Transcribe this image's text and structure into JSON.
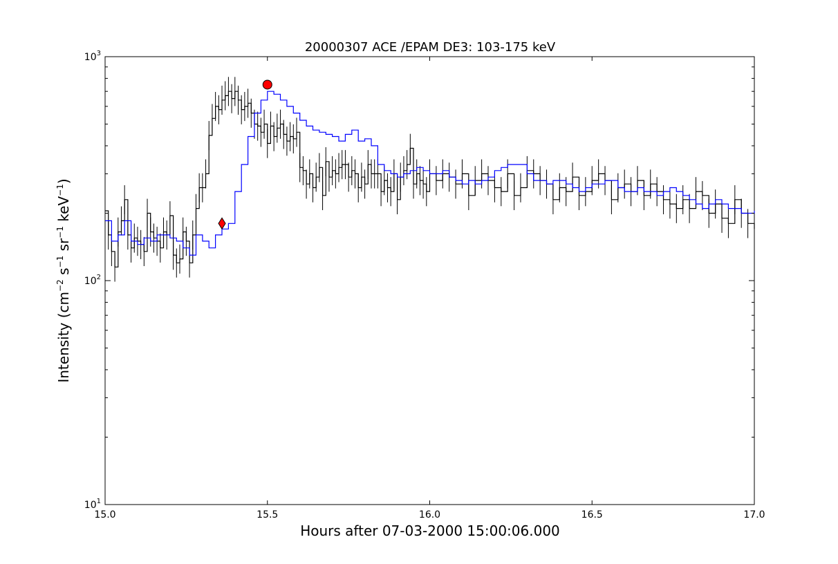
{
  "chart_data": {
    "type": "line",
    "title": "20000307 ACE /EPAM DE3: 103-175 keV",
    "xlabel": "Hours after 07-03-2000 15:00:06.000",
    "ylabel": {
      "base": "Intensity (cm",
      "sup1": "−2",
      "s": " s",
      "sup2": "−1",
      "sr": " sr",
      "sup3": "−1",
      "kev": " keV",
      "sup4": "−1",
      "close": ")"
    },
    "xlim": [
      15.0,
      17.0
    ],
    "ylim": [
      10,
      1000
    ],
    "y_scale": "log",
    "x_ticks": [
      {
        "value": 15.0,
        "label": "15.0"
      },
      {
        "value": 15.5,
        "label": "15.5"
      },
      {
        "value": 16.0,
        "label": "16.0"
      },
      {
        "value": 16.5,
        "label": "16.5"
      },
      {
        "value": 17.0,
        "label": "17.0"
      }
    ],
    "y_ticks": [
      {
        "value": 10,
        "base": "10",
        "exp": "1"
      },
      {
        "value": 100,
        "base": "10",
        "exp": "2"
      },
      {
        "value": 1000,
        "base": "10",
        "exp": "3"
      }
    ],
    "grid": false,
    "series": [
      {
        "color": "#000000",
        "style": "step-with-errorbars",
        "x": [
          15.0,
          15.01,
          15.02,
          15.03,
          15.04,
          15.05,
          15.06,
          15.07,
          15.08,
          15.09,
          15.1,
          15.11,
          15.12,
          15.13,
          15.14,
          15.15,
          15.16,
          15.17,
          15.18,
          15.19,
          15.2,
          15.21,
          15.22,
          15.23,
          15.24,
          15.25,
          15.26,
          15.27,
          15.28,
          15.29,
          15.3,
          15.31,
          15.32,
          15.33,
          15.34,
          15.35,
          15.36,
          15.37,
          15.38,
          15.39,
          15.4,
          15.41,
          15.42,
          15.43,
          15.44,
          15.45,
          15.46,
          15.47,
          15.48,
          15.49,
          15.5,
          15.51,
          15.52,
          15.53,
          15.54,
          15.55,
          15.56,
          15.57,
          15.58,
          15.59,
          15.6,
          15.61,
          15.62,
          15.63,
          15.64,
          15.65,
          15.66,
          15.67,
          15.68,
          15.69,
          15.7,
          15.71,
          15.72,
          15.73,
          15.74,
          15.75,
          15.76,
          15.77,
          15.78,
          15.79,
          15.8,
          15.81,
          15.82,
          15.83,
          15.84,
          15.85,
          15.86,
          15.87,
          15.88,
          15.89,
          15.9,
          15.91,
          15.92,
          15.93,
          15.94,
          15.95,
          15.96,
          15.97,
          15.98,
          15.99,
          16.0,
          16.02,
          16.04,
          16.06,
          16.08,
          16.1,
          16.12,
          16.14,
          16.16,
          16.18,
          16.2,
          16.22,
          16.24,
          16.26,
          16.28,
          16.3,
          16.32,
          16.34,
          16.36,
          16.38,
          16.4,
          16.42,
          16.44,
          16.46,
          16.48,
          16.5,
          16.52,
          16.54,
          16.56,
          16.58,
          16.6,
          16.62,
          16.64,
          16.66,
          16.68,
          16.7,
          16.72,
          16.74,
          16.76,
          16.78,
          16.8,
          16.82,
          16.84,
          16.86,
          16.88,
          16.9,
          16.92,
          16.94,
          16.96,
          16.98,
          17.0
        ],
        "y": [
          205,
          160,
          135,
          115,
          165,
          185,
          230,
          160,
          140,
          155,
          150,
          145,
          135,
          200,
          165,
          155,
          150,
          140,
          165,
          160,
          195,
          130,
          120,
          125,
          165,
          150,
          120,
          160,
          210,
          260,
          260,
          300,
          445,
          530,
          600,
          580,
          640,
          670,
          700,
          650,
          700,
          640,
          580,
          600,
          620,
          560,
          500,
          490,
          460,
          500,
          410,
          490,
          440,
          480,
          500,
          450,
          420,
          440,
          430,
          460,
          320,
          310,
          270,
          300,
          260,
          290,
          320,
          240,
          340,
          290,
          310,
          300,
          320,
          330,
          330,
          290,
          310,
          300,
          260,
          290,
          270,
          330,
          300,
          300,
          300,
          250,
          280,
          260,
          250,
          300,
          230,
          290,
          310,
          330,
          390,
          270,
          300,
          280,
          270,
          250,
          300,
          280,
          300,
          290,
          270,
          300,
          240,
          280,
          300,
          280,
          260,
          250,
          300,
          240,
          260,
          310,
          300,
          280,
          270,
          230,
          260,
          250,
          290,
          240,
          250,
          280,
          300,
          280,
          230,
          260,
          270,
          250,
          280,
          240,
          270,
          250,
          230,
          220,
          210,
          230,
          210,
          250,
          240,
          200,
          220,
          190,
          180,
          230,
          200,
          180,
          170
        ]
      },
      {
        "color": "#0000ff",
        "style": "step",
        "x": [
          15.0,
          15.02,
          15.04,
          15.06,
          15.08,
          15.1,
          15.12,
          15.14,
          15.16,
          15.18,
          15.2,
          15.22,
          15.24,
          15.26,
          15.28,
          15.3,
          15.32,
          15.34,
          15.36,
          15.38,
          15.4,
          15.42,
          15.44,
          15.46,
          15.48,
          15.5,
          15.52,
          15.54,
          15.56,
          15.58,
          15.6,
          15.62,
          15.64,
          15.66,
          15.68,
          15.7,
          15.72,
          15.74,
          15.76,
          15.78,
          15.8,
          15.82,
          15.84,
          15.86,
          15.88,
          15.9,
          15.92,
          15.94,
          15.96,
          15.98,
          16.0,
          16.02,
          16.04,
          16.06,
          16.08,
          16.1,
          16.12,
          16.14,
          16.16,
          16.18,
          16.2,
          16.22,
          16.24,
          16.26,
          16.28,
          16.3,
          16.32,
          16.34,
          16.36,
          16.38,
          16.4,
          16.42,
          16.44,
          16.46,
          16.48,
          16.5,
          16.52,
          16.54,
          16.56,
          16.58,
          16.6,
          16.62,
          16.64,
          16.66,
          16.68,
          16.7,
          16.72,
          16.74,
          16.76,
          16.78,
          16.8,
          16.82,
          16.84,
          16.86,
          16.88,
          16.9,
          16.92,
          16.94,
          16.96,
          16.98,
          17.0
        ],
        "y": [
          185,
          150,
          160,
          185,
          150,
          145,
          155,
          150,
          160,
          160,
          155,
          150,
          140,
          130,
          160,
          150,
          140,
          160,
          170,
          180,
          250,
          330,
          440,
          560,
          640,
          700,
          680,
          640,
          600,
          560,
          520,
          490,
          470,
          460,
          450,
          440,
          420,
          450,
          470,
          420,
          430,
          400,
          330,
          310,
          300,
          290,
          300,
          310,
          320,
          310,
          300,
          300,
          310,
          290,
          280,
          270,
          280,
          270,
          280,
          290,
          310,
          320,
          330,
          330,
          330,
          300,
          280,
          280,
          270,
          280,
          280,
          270,
          260,
          250,
          260,
          270,
          270,
          280,
          280,
          260,
          250,
          250,
          260,
          250,
          250,
          240,
          250,
          260,
          250,
          240,
          230,
          220,
          210,
          220,
          230,
          220,
          210,
          210,
          200,
          200,
          205
        ]
      }
    ],
    "markers": [
      {
        "shape": "circle",
        "color": "#ff0000",
        "x": 15.5,
        "y": 750
      },
      {
        "shape": "diamond",
        "color": "#ff0000",
        "x": 15.36,
        "y": 180
      }
    ]
  }
}
